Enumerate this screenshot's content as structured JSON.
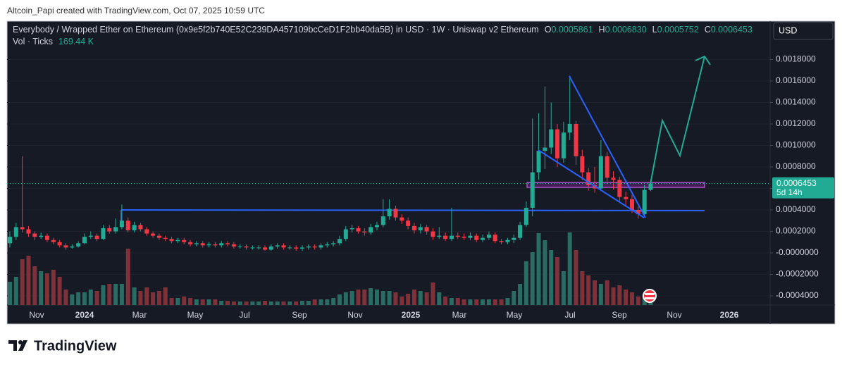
{
  "attribution": "Altcoin_Papi created with TradingView.com, Oct 07, 2025 10:59 UTC",
  "chart_data": {
    "type": "candlestick",
    "title": "Everybody / Wrapped Ether on Ethereum (0x9e5f2b740E52C239DA457109bcCeD1F2bb40da5B) in USD · 1W · Uniswap v2 Ethereum",
    "ohlc": [
      {
        "key": "O",
        "text": "0.0005861"
      },
      {
        "key": "H",
        "text": "0.0006830"
      },
      {
        "key": "L",
        "text": "0.0005752"
      },
      {
        "key": "C",
        "text": "0.0006453"
      }
    ],
    "volume_name": "Vol · Ticks",
    "volume_legend_value": "169.44 K",
    "currency": "USD",
    "last_price": {
      "value": 0.0006453,
      "label": "0.0006453"
    },
    "countdown": "5d 14h",
    "x_labels": [
      "Nov",
      "2024",
      "Mar",
      "May",
      "Jul",
      "Sep",
      "Nov",
      "2025",
      "Mar",
      "May",
      "Jul",
      "Sep",
      "Nov",
      "2026"
    ],
    "open": [
      9e-05,
      0.00015,
      0.00024,
      0.00022,
      0.00018,
      0.00015,
      0.00016,
      0.00012,
      0.0001,
      7e-05,
      5e-05,
      6e-05,
      9e-05,
      0.00015,
      0.00016,
      0.00013,
      0.00023,
      0.0002,
      0.00024,
      0.0003,
      0.00021,
      0.00026,
      0.00022,
      0.00018,
      0.00016,
      0.00014,
      0.00013,
      0.00011,
      0.00012,
      0.0001,
      8e-05,
      9e-05,
      7e-05,
      8e-05,
      7e-05,
      9e-05,
      8e-05,
      6e-05,
      6e-05,
      5e-05,
      5e-05,
      5e-05,
      3e-05,
      6e-05,
      7e-05,
      5e-05,
      5e-05,
      4e-05,
      5e-05,
      6e-05,
      5e-05,
      7e-05,
      8e-05,
      9e-05,
      0.00013,
      0.00022,
      0.00023,
      0.0002,
      0.00019,
      0.00024,
      0.00026,
      0.00034,
      0.00041,
      0.00033,
      0.0003,
      0.00025,
      0.00021,
      0.00024,
      0.0002,
      0.00015,
      0.00016,
      0.00013,
      0.00016,
      0.00015,
      0.00014,
      0.00016,
      0.00012,
      0.00014,
      0.00017,
      0.00011,
      0.0001,
      0.00012,
      0.00014,
      0.00026,
      0.00042,
      0.00075,
      0.00095,
      0.00098,
      0.00115,
      0.00088,
      0.00112,
      0.0012,
      0.0009,
      0.00075,
      0.00063,
      0.0006,
      0.0009,
      0.0007,
      0.00068,
      0.00052,
      0.0005,
      0.0004,
      0.00036,
      0.0005861
    ],
    "high": [
      0.0002,
      0.00028,
      0.0009,
      0.00025,
      0.0002,
      0.00019,
      0.00018,
      0.00014,
      0.00012,
      9e-05,
      8e-05,
      0.00011,
      0.00018,
      0.0002,
      0.00018,
      0.00026,
      0.00026,
      0.00032,
      0.00045,
      0.00033,
      0.00029,
      0.00028,
      0.00024,
      0.0002,
      0.00018,
      0.00016,
      0.00015,
      0.00014,
      0.00014,
      0.00012,
      0.00011,
      0.00011,
      0.0001,
      0.0001,
      0.00011,
      0.00011,
      0.0001,
      8e-05,
      8e-05,
      7e-05,
      7e-05,
      7e-05,
      8e-05,
      9e-05,
      9e-05,
      7e-05,
      7e-05,
      7e-05,
      8e-05,
      8e-05,
      9e-05,
      0.0001,
      0.00011,
      0.00016,
      0.00025,
      0.00026,
      0.00025,
      0.00023,
      0.00027,
      0.00029,
      0.0005,
      0.0005,
      0.00044,
      0.00036,
      0.00033,
      0.00028,
      0.00027,
      0.00026,
      0.00023,
      0.00024,
      0.00019,
      0.00042,
      0.00019,
      0.00018,
      0.00019,
      0.00018,
      0.00017,
      0.0002,
      0.00019,
      0.00013,
      0.00014,
      0.00017,
      0.00029,
      0.00048,
      0.00125,
      0.0013,
      0.00155,
      0.0014,
      0.0012,
      0.00122,
      0.00165,
      0.00123,
      0.00096,
      0.00079,
      0.0008,
      0.00105,
      0.00094,
      0.00076,
      0.00071,
      0.00057,
      0.00054,
      0.00043,
      0.00063,
      0.000683
    ],
    "low": [
      5e-05,
      0.00012,
      0.00019,
      0.00015,
      0.00012,
      0.00013,
      0.0001,
      8e-05,
      5e-05,
      3e-05,
      4e-05,
      5e-05,
      8e-05,
      0.00013,
      0.00011,
      0.00012,
      0.00018,
      0.00018,
      0.00022,
      0.00019,
      0.00019,
      0.0002,
      0.00016,
      0.00014,
      0.00012,
      0.00011,
      9e-05,
      9e-05,
      8e-05,
      6e-05,
      6e-05,
      5e-05,
      5e-05,
      5e-05,
      5e-05,
      6e-05,
      4e-05,
      4e-05,
      3e-05,
      3e-05,
      3e-05,
      2e-05,
      2e-05,
      4e-05,
      3e-05,
      3e-05,
      2e-05,
      2e-05,
      3e-05,
      3e-05,
      3e-05,
      5e-05,
      6e-05,
      7e-05,
      0.00011,
      0.00019,
      0.00018,
      0.00016,
      0.00017,
      0.00021,
      0.00024,
      0.00031,
      0.0003,
      0.00027,
      0.00022,
      0.00018,
      0.00018,
      0.00017,
      0.00012,
      0.00013,
      0.00011,
      0.00011,
      0.00013,
      0.00012,
      0.00012,
      0.0001,
      0.0001,
      0.00012,
      9e-05,
      8e-05,
      8e-05,
      9e-05,
      0.00012,
      0.00024,
      0.00034,
      0.00068,
      0.00078,
      0.00092,
      0.0008,
      0.00084,
      0.00105,
      0.00082,
      0.00068,
      0.00058,
      0.00056,
      0.00058,
      0.00064,
      0.00059,
      0.00048,
      0.00044,
      0.00037,
      0.00032,
      0.00035,
      0.0005752
    ],
    "close": [
      0.00015,
      0.00024,
      0.00022,
      0.00018,
      0.00015,
      0.00016,
      0.00012,
      0.0001,
      7e-05,
      5e-05,
      6e-05,
      9e-05,
      0.00015,
      0.00016,
      0.00013,
      0.00023,
      0.0002,
      0.00024,
      0.0003,
      0.00021,
      0.00026,
      0.00022,
      0.00018,
      0.00016,
      0.00014,
      0.00013,
      0.00011,
      0.00012,
      0.0001,
      8e-05,
      9e-05,
      7e-05,
      8e-05,
      7e-05,
      9e-05,
      8e-05,
      6e-05,
      6e-05,
      5e-05,
      5e-05,
      5e-05,
      3e-05,
      6e-05,
      7e-05,
      5e-05,
      5e-05,
      4e-05,
      5e-05,
      6e-05,
      5e-05,
      7e-05,
      8e-05,
      9e-05,
      0.00013,
      0.00022,
      0.00023,
      0.0002,
      0.00019,
      0.00024,
      0.00026,
      0.00034,
      0.00041,
      0.00033,
      0.0003,
      0.00025,
      0.00021,
      0.00024,
      0.0002,
      0.00015,
      0.00016,
      0.00013,
      0.00016,
      0.00015,
      0.00014,
      0.00016,
      0.00012,
      0.00014,
      0.00017,
      0.00011,
      0.0001,
      0.00012,
      0.00014,
      0.00026,
      0.00042,
      0.00075,
      0.00095,
      0.00098,
      0.00115,
      0.00088,
      0.00112,
      0.0012,
      0.0009,
      0.00075,
      0.00063,
      0.0006,
      0.0009,
      0.0007,
      0.00068,
      0.00052,
      0.0005,
      0.0004,
      0.00036,
      0.0005861,
      0.0006453
    ],
    "volume": [
      363,
      440,
      715,
      770,
      605,
      528,
      495,
      550,
      440,
      242,
      165,
      198,
      198,
      242,
      220,
      308,
      330,
      330,
      330,
      880,
      275,
      220,
      275,
      198,
      220,
      275,
      110,
      110,
      132,
      110,
      88,
      88,
      88,
      88,
      66,
      66,
      55,
      55,
      55,
      55,
      55,
      66,
      55,
      55,
      55,
      55,
      55,
      66,
      66,
      88,
      88,
      88,
      110,
      165,
      198,
      220,
      242,
      242,
      264,
      242,
      220,
      220,
      198,
      132,
      176,
      242,
      220,
      198,
      352,
      198,
      132,
      110,
      110,
      88,
      88,
      88,
      88,
      88,
      88,
      88,
      110,
      220,
      330,
      682,
      825,
      1122,
      1012,
      858,
      748,
      528,
      1133,
      858,
      528,
      462,
      385,
      330,
      385,
      275,
      308,
      242,
      198,
      132,
      165,
      169.44
    ],
    "ylim": [
      -0.000485,
      0.002157
    ],
    "yticks": [
      {
        "value": 0.0018,
        "label": "0.0018000"
      },
      {
        "value": 0.0016,
        "label": "0.0016000"
      },
      {
        "value": 0.0014,
        "label": "0.0014000"
      },
      {
        "value": 0.0012,
        "label": "0.0012000"
      },
      {
        "value": 0.001,
        "label": "0.0010000"
      },
      {
        "value": 0.0008,
        "label": "0.0008000"
      },
      {
        "value": 0.0006,
        "label": "0.0006000"
      },
      {
        "value": 0.0004,
        "label": "0.0004000"
      },
      {
        "value": 0.0002,
        "label": "0.0002000"
      },
      {
        "value": 0,
        "label": "-0.0000000"
      },
      {
        "value": -0.0002,
        "label": "-0.0002000"
      },
      {
        "value": -0.0004,
        "label": "-0.0004000"
      }
    ],
    "grid": true,
    "colors": {
      "up": "#22ab94",
      "down": "#f23645",
      "volume_up": "#2a6b64",
      "volume_down": "#7e3139"
    }
  },
  "footer": {
    "logo": "TradingView"
  }
}
